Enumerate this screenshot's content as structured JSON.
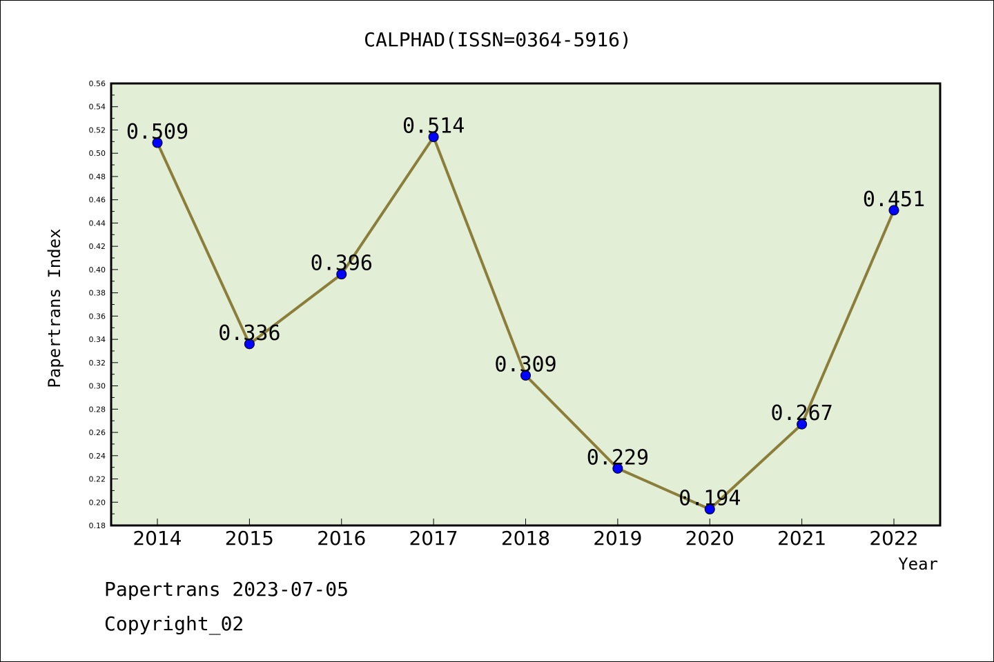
{
  "chart_data": {
    "type": "line",
    "title": "CALPHAD(ISSN=0364-5916)",
    "xlabel": "Year",
    "ylabel": "Papertrans Index",
    "categories": [
      "2014",
      "2015",
      "2016",
      "2017",
      "2018",
      "2019",
      "2020",
      "2021",
      "2022"
    ],
    "values": [
      0.509,
      0.336,
      0.396,
      0.514,
      0.309,
      0.229,
      0.194,
      0.267,
      0.451
    ],
    "value_labels": [
      "0.509",
      "0.336",
      "0.396",
      "0.514",
      "0.309",
      "0.229",
      "0.194",
      "0.267",
      "0.451"
    ],
    "ylim": [
      0.18,
      0.56
    ],
    "yticks": [
      "0.18",
      "0.20",
      "0.22",
      "0.24",
      "0.26",
      "0.28",
      "0.30",
      "0.32",
      "0.34",
      "0.36",
      "0.38",
      "0.40",
      "0.42",
      "0.44",
      "0.46",
      "0.48",
      "0.50",
      "0.52",
      "0.54",
      "0.56"
    ],
    "grid": false,
    "colors": {
      "plot_background": "#e2efd6",
      "line": "#8b7d3a",
      "marker": "#0000ff"
    }
  },
  "footer": {
    "line1": "Papertrans 2023-07-05",
    "line2": "Copyright_02"
  }
}
